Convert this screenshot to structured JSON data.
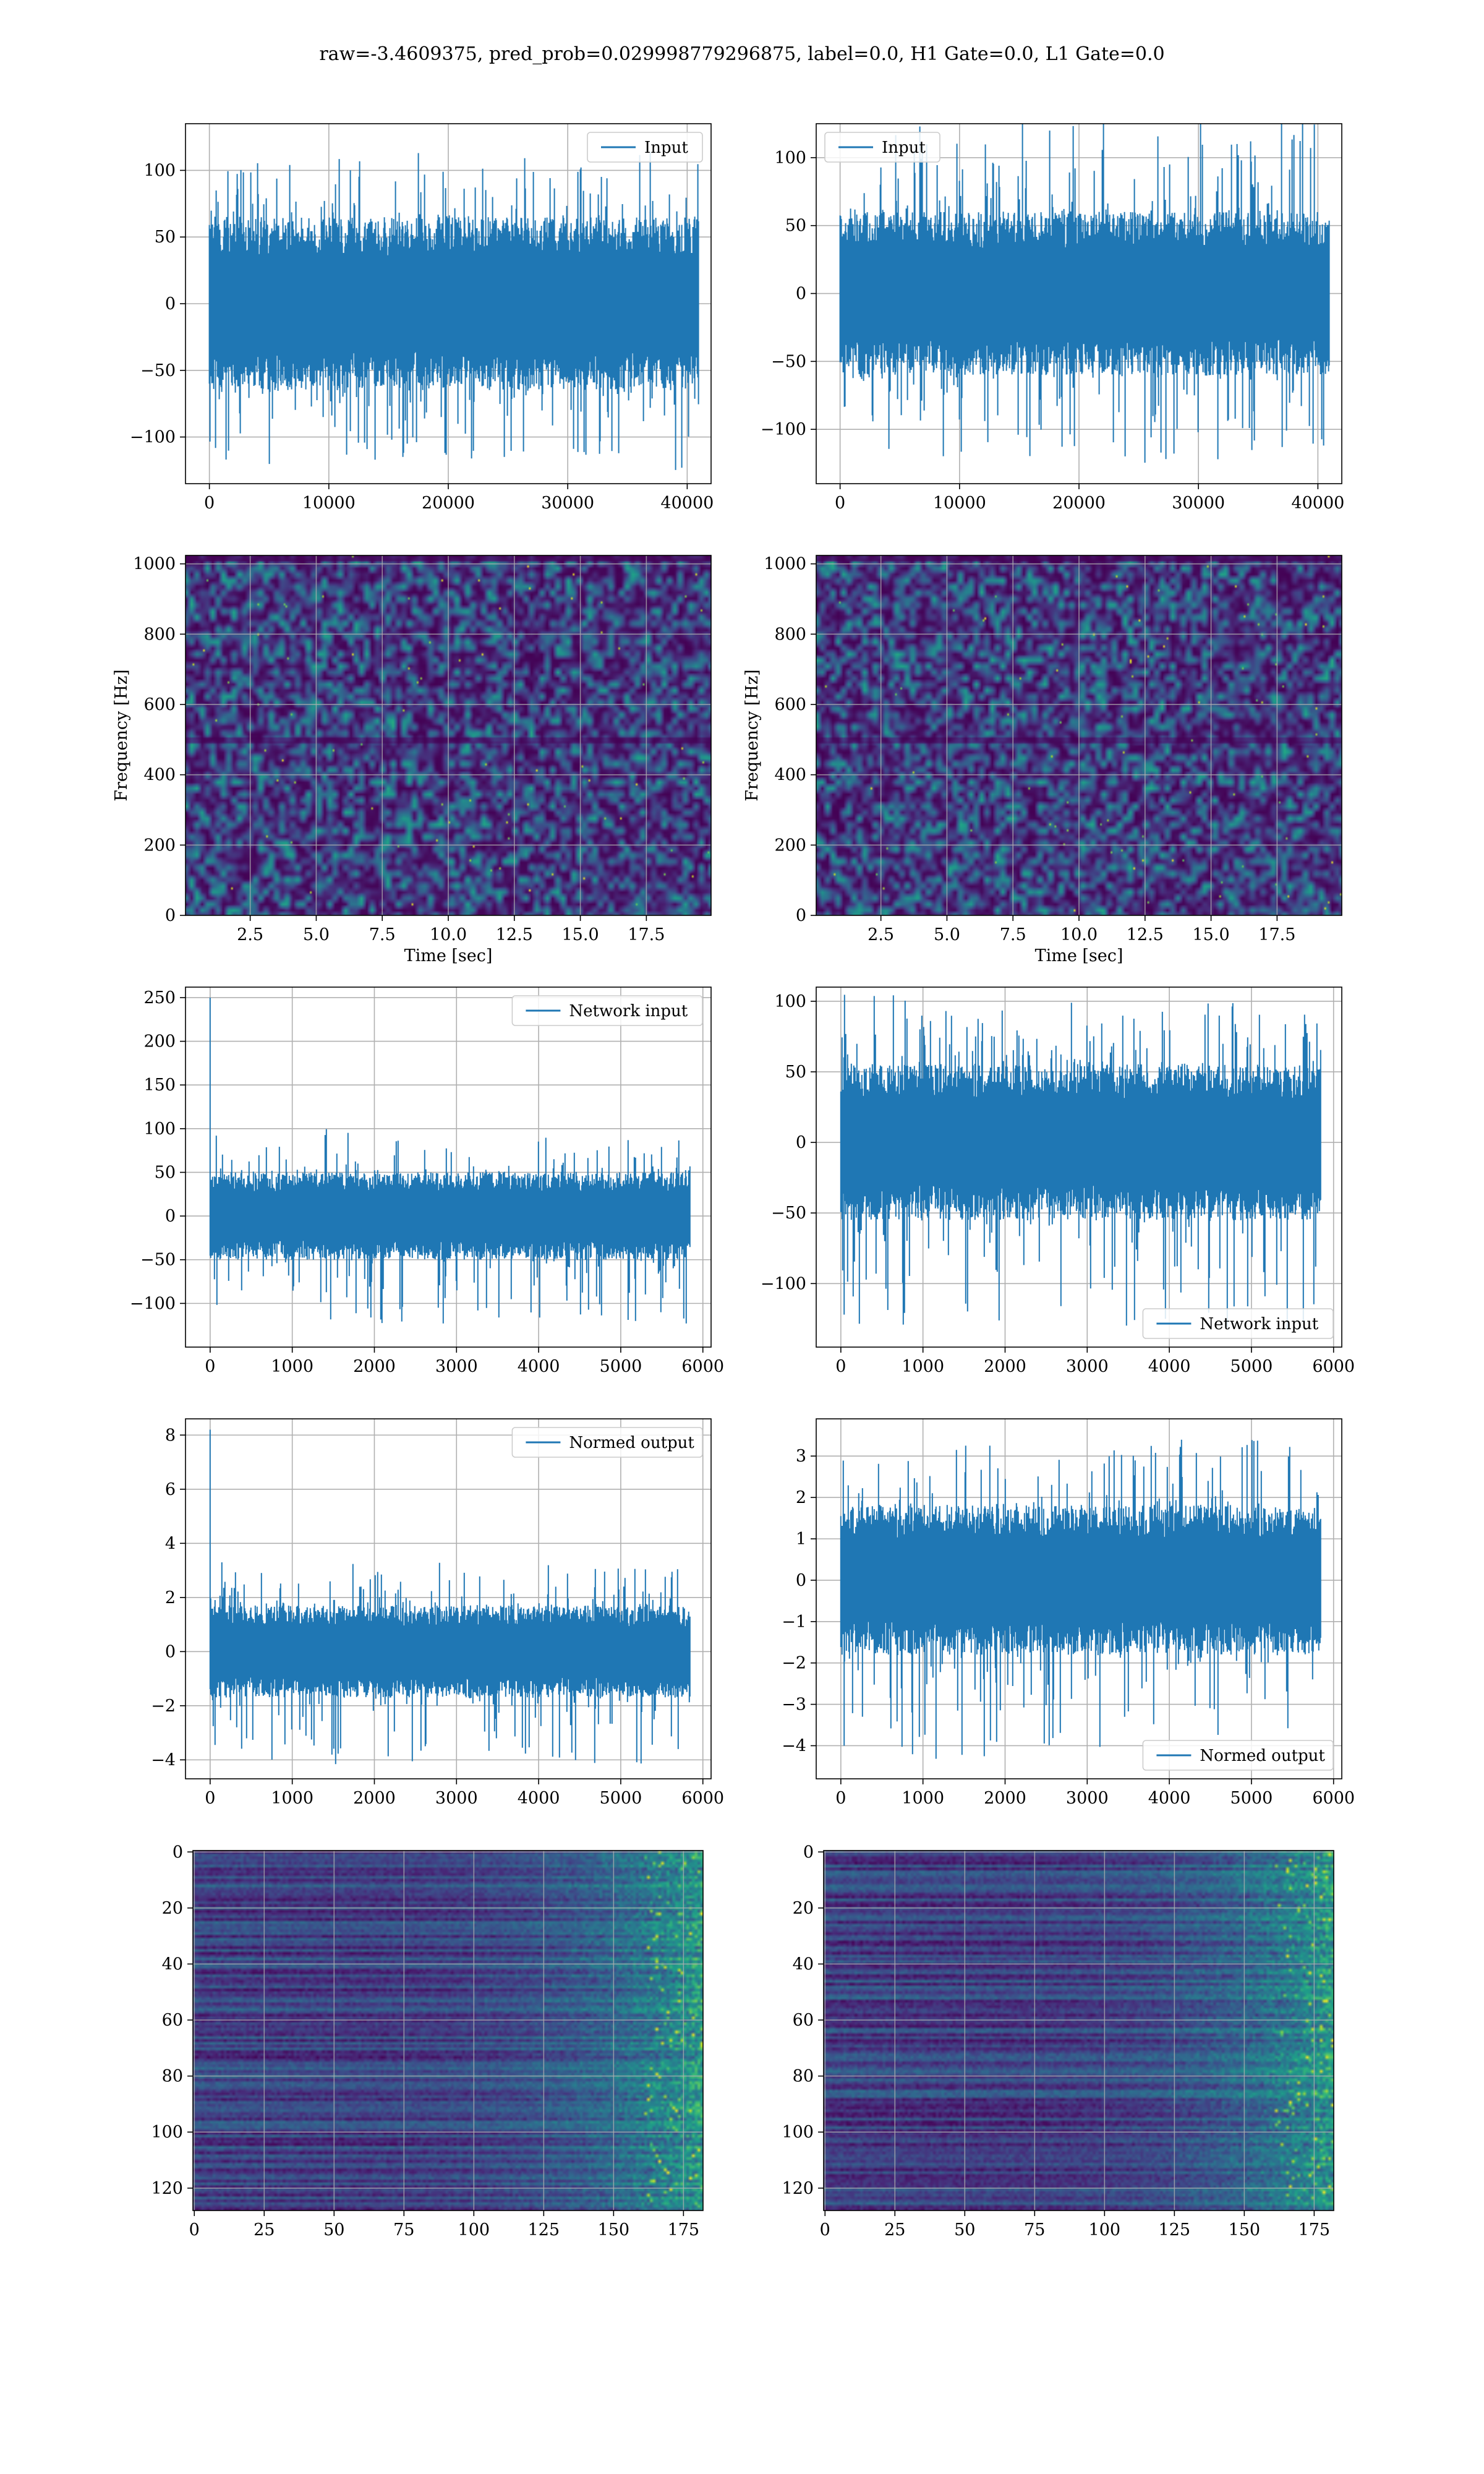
{
  "suptitle": "raw=-3.4609375, pred_prob=0.029998779296875, label=0.0, H1 Gate=0.0, L1 Gate=0.0",
  "colors": {
    "line": "#1f77b4",
    "grid": "#b0b0b0",
    "viridis_dark": "#440154"
  },
  "chart_data": [
    {
      "id": "h1-input",
      "type": "line",
      "legend": "Input",
      "legend_loc": "upper right",
      "xlim": [
        -2000,
        42000
      ],
      "ylim": [
        -135,
        135
      ],
      "grid": true,
      "x_ticks": [
        0,
        10000,
        20000,
        30000,
        40000
      ],
      "y_ticks": [
        -100,
        -50,
        0,
        50,
        100
      ],
      "x_tick_labels": [
        "0",
        "10000",
        "20000",
        "30000",
        "40000"
      ],
      "y_tick_labels": [
        "−100",
        "−50",
        "0",
        "50",
        "100"
      ],
      "signal": {
        "n": 40960,
        "x_start": 0,
        "x_end": 40960,
        "typical_range": [
          -65,
          65
        ],
        "extreme_range": [
          -125,
          115
        ]
      }
    },
    {
      "id": "l1-input",
      "type": "line",
      "legend": "Input",
      "legend_loc": "upper left",
      "xlim": [
        -2000,
        42000
      ],
      "ylim": [
        -140,
        125
      ],
      "grid": true,
      "x_ticks": [
        0,
        10000,
        20000,
        30000,
        40000
      ],
      "y_ticks": [
        -100,
        -50,
        0,
        50,
        100
      ],
      "x_tick_labels": [
        "0",
        "10000",
        "20000",
        "30000",
        "40000"
      ],
      "y_tick_labels": [
        "−100",
        "−50",
        "0",
        "50",
        "100"
      ],
      "signal": {
        "n": 40960,
        "x_start": 0,
        "x_end": 40960,
        "typical_range": [
          -60,
          60
        ],
        "extreme_range": [
          -125,
          130
        ]
      }
    },
    {
      "id": "h1-spectrogram",
      "type": "heatmap",
      "colormap": "viridis",
      "xlabel": "Time [sec]",
      "ylabel": "Frequency [Hz]",
      "xlim": [
        0.05,
        19.95
      ],
      "ylim": [
        0,
        1024
      ],
      "grid": true,
      "x_ticks": [
        2.5,
        5,
        7.5,
        10,
        12.5,
        15,
        17.5
      ],
      "y_ticks": [
        0,
        200,
        400,
        600,
        800,
        1000
      ],
      "x_tick_labels": [
        "2.5",
        "5.0",
        "7.5",
        "10.0",
        "12.5",
        "15.0",
        "17.5"
      ],
      "y_tick_labels": [
        "0",
        "200",
        "400",
        "600",
        "800",
        "1000"
      ]
    },
    {
      "id": "l1-spectrogram",
      "type": "heatmap",
      "colormap": "viridis",
      "xlabel": "Time [sec]",
      "ylabel": "Frequency [Hz]",
      "xlim": [
        0.05,
        19.95
      ],
      "ylim": [
        0,
        1024
      ],
      "grid": true,
      "x_ticks": [
        2.5,
        5,
        7.5,
        10,
        12.5,
        15,
        17.5
      ],
      "y_ticks": [
        0,
        200,
        400,
        600,
        800,
        1000
      ],
      "x_tick_labels": [
        "2.5",
        "5.0",
        "7.5",
        "10.0",
        "12.5",
        "15.0",
        "17.5"
      ],
      "y_tick_labels": [
        "0",
        "200",
        "400",
        "600",
        "800",
        "1000"
      ]
    },
    {
      "id": "h1-network-input",
      "type": "line",
      "legend": "Network input",
      "legend_loc": "upper right",
      "xlim": [
        -300,
        6100
      ],
      "ylim": [
        -150,
        262
      ],
      "grid": true,
      "x_ticks": [
        0,
        1000,
        2000,
        3000,
        4000,
        5000,
        6000
      ],
      "y_ticks": [
        -100,
        -50,
        0,
        50,
        100,
        150,
        200,
        250
      ],
      "x_tick_labels": [
        "0",
        "1000",
        "2000",
        "3000",
        "4000",
        "5000",
        "6000"
      ],
      "y_tick_labels": [
        "−100",
        "−50",
        "0",
        "50",
        "100",
        "150",
        "200",
        "250"
      ],
      "signal": {
        "n": 5800,
        "x_start": 0,
        "x_end": 5840,
        "typical_range": [
          -50,
          50
        ],
        "extreme_range": [
          -125,
          100
        ],
        "spike": {
          "x": 0,
          "y": 250
        }
      }
    },
    {
      "id": "l1-network-input",
      "type": "line",
      "legend": "Network input",
      "legend_loc": "lower right",
      "xlim": [
        -300,
        6100
      ],
      "ylim": [
        -145,
        110
      ],
      "grid": true,
      "x_ticks": [
        0,
        1000,
        2000,
        3000,
        4000,
        5000,
        6000
      ],
      "y_ticks": [
        -100,
        -50,
        0,
        50,
        100
      ],
      "x_tick_labels": [
        "0",
        "1000",
        "2000",
        "3000",
        "4000",
        "5000",
        "6000"
      ],
      "y_tick_labels": [
        "−100",
        "−50",
        "0",
        "50",
        "100"
      ],
      "signal": {
        "n": 5800,
        "x_start": 0,
        "x_end": 5840,
        "typical_range": [
          -55,
          55
        ],
        "extreme_range": [
          -135,
          105
        ],
        "spike": {
          "x": 40,
          "y": -122
        }
      }
    },
    {
      "id": "h1-normed-output",
      "type": "line",
      "legend": "Normed output",
      "legend_loc": "upper right",
      "xlim": [
        -300,
        6100
      ],
      "ylim": [
        -4.7,
        8.6
      ],
      "grid": true,
      "x_ticks": [
        0,
        1000,
        2000,
        3000,
        4000,
        5000,
        6000
      ],
      "y_ticks": [
        -4,
        -2,
        0,
        2,
        4,
        6,
        8
      ],
      "x_tick_labels": [
        "0",
        "1000",
        "2000",
        "3000",
        "4000",
        "5000",
        "6000"
      ],
      "y_tick_labels": [
        "−4",
        "−2",
        "0",
        "2",
        "4",
        "6",
        "8"
      ],
      "signal": {
        "n": 5800,
        "x_start": 0,
        "x_end": 5840,
        "typical_range": [
          -1.7,
          1.7
        ],
        "extreme_range": [
          -4.2,
          3.3
        ],
        "spike": {
          "x": 0,
          "y": 8.2
        }
      }
    },
    {
      "id": "l1-normed-output",
      "type": "line",
      "legend": "Normed output",
      "legend_loc": "lower right",
      "xlim": [
        -300,
        6100
      ],
      "ylim": [
        -4.8,
        3.9
      ],
      "grid": true,
      "x_ticks": [
        0,
        1000,
        2000,
        3000,
        4000,
        5000,
        6000
      ],
      "y_ticks": [
        -4,
        -3,
        -2,
        -1,
        0,
        1,
        2,
        3
      ],
      "x_tick_labels": [
        "0",
        "1000",
        "2000",
        "3000",
        "4000",
        "5000",
        "6000"
      ],
      "y_tick_labels": [
        "−4",
        "−3",
        "−2",
        "−1",
        "0",
        "1",
        "2",
        "3"
      ],
      "signal": {
        "n": 5800,
        "x_start": 0,
        "x_end": 5840,
        "typical_range": [
          -1.8,
          1.8
        ],
        "extreme_range": [
          -4.4,
          3.4
        ],
        "spike": {
          "x": 40,
          "y": -4.0
        }
      }
    },
    {
      "id": "h1-feature-map",
      "type": "heatmap",
      "colormap": "viridis",
      "xlim": [
        -0.5,
        182
      ],
      "ylim": [
        128,
        -0.5
      ],
      "grid": true,
      "x_ticks": [
        0,
        25,
        50,
        75,
        100,
        125,
        150,
        175
      ],
      "y_ticks": [
        0,
        20,
        40,
        60,
        80,
        100,
        120
      ],
      "x_tick_labels": [
        "0",
        "25",
        "50",
        "75",
        "100",
        "125",
        "150",
        "175"
      ],
      "y_tick_labels": [
        "0",
        "20",
        "40",
        "60",
        "80",
        "100",
        "120"
      ]
    },
    {
      "id": "l1-feature-map",
      "type": "heatmap",
      "colormap": "viridis",
      "xlim": [
        -0.5,
        182
      ],
      "ylim": [
        128,
        -0.5
      ],
      "grid": true,
      "x_ticks": [
        0,
        25,
        50,
        75,
        100,
        125,
        150,
        175
      ],
      "y_ticks": [
        0,
        20,
        40,
        60,
        80,
        100,
        120
      ],
      "x_tick_labels": [
        "0",
        "25",
        "50",
        "75",
        "100",
        "125",
        "150",
        "175"
      ],
      "y_tick_labels": [
        "0",
        "20",
        "40",
        "60",
        "80",
        "100",
        "120"
      ]
    }
  ]
}
